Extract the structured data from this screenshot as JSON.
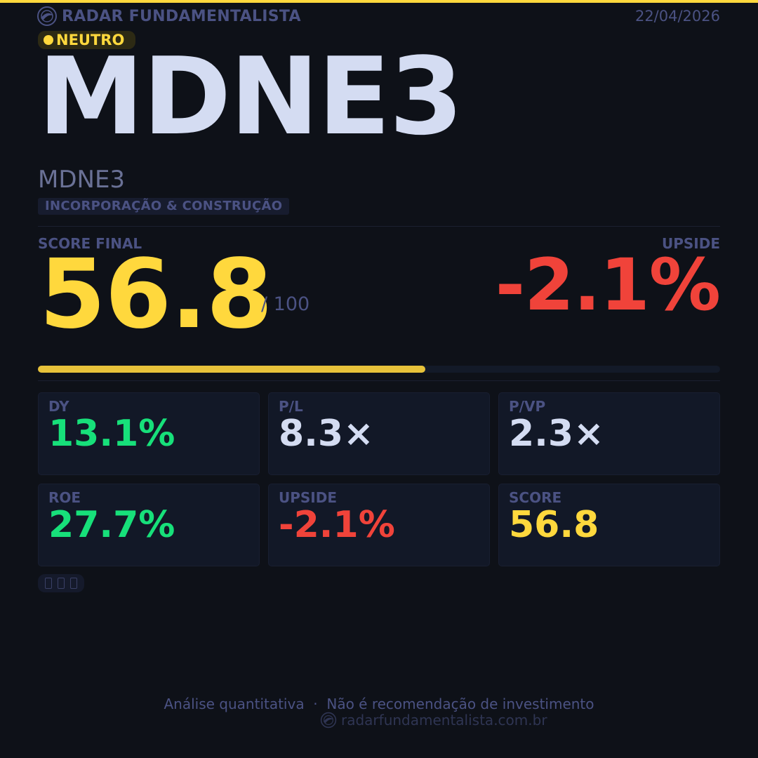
{
  "header": {
    "brand": "RADAR FUNDAMENTALISTA",
    "date": "22/04/2026"
  },
  "rating": {
    "label": "NEUTRO",
    "color": "#ffd83d"
  },
  "asset": {
    "ticker": "MDNE3",
    "name": "MDNE3",
    "sector": "INCORPORAÇÃO & CONSTRUÇÃO"
  },
  "score": {
    "label": "SCORE FINAL",
    "value": "56.8",
    "scale": "/ 100",
    "progress_fraction": 0.568
  },
  "upside": {
    "label": "UPSIDE",
    "value": "-2.1%"
  },
  "metrics": [
    {
      "label": "DY",
      "value": "13.1%",
      "color": "#17e07a"
    },
    {
      "label": "P/L",
      "value": "8.3×",
      "color": "#d4dcf2"
    },
    {
      "label": "P/VP",
      "value": "2.3×",
      "color": "#d4dcf2"
    },
    {
      "label": "ROE",
      "value": "27.7%",
      "color": "#17e07a"
    },
    {
      "label": "UPSIDE",
      "value": "-2.1%",
      "color": "#f0433a"
    },
    {
      "label": "SCORE",
      "value": "56.8",
      "color": "#ffd83d"
    }
  ],
  "tags_icon": "missing-glyph-icons",
  "footer": {
    "disclaimer": "Análise quantitativa  ·  Não é recomendação de investimento",
    "url": "radarfundamentalista.com.br"
  },
  "colors": {
    "accent": "#ffd83d",
    "positive": "#17e07a",
    "negative": "#f0433a",
    "background": "#0e1118"
  }
}
